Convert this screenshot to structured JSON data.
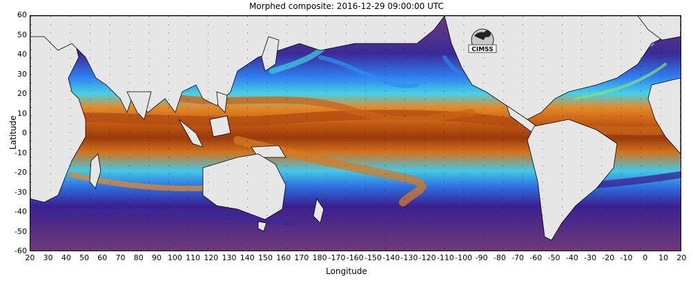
{
  "title": "Morphed composite: 2016-12-29 09:00:00 UTC",
  "xlabel": "Longitude",
  "ylabel": "Latitude",
  "logo_text": "CIMSS",
  "y_ticks": [
    "60",
    "50",
    "40",
    "30",
    "20",
    "10",
    "0",
    "-10",
    "-20",
    "-30",
    "-40",
    "-50",
    "-60"
  ],
  "x_ticks": [
    "20",
    "30",
    "40",
    "50",
    "60",
    "70",
    "80",
    "90",
    "100",
    "110",
    "120",
    "130",
    "140",
    "150",
    "160",
    "170",
    "180",
    "-170",
    "-160",
    "-150",
    "-140",
    "-130",
    "-120",
    "-110",
    "-100",
    "-90",
    "-80",
    "-70",
    "-60",
    "-50",
    "-40",
    "-30",
    "-20",
    "-10",
    "0",
    "10",
    "20"
  ],
  "colors": {
    "land": "#e6e6e6",
    "dry": "#7a3f7a",
    "low": "#3b1f8f",
    "mid": "#2f8ef0",
    "cyan": "#3cd6e8",
    "green": "#7fe07a",
    "orange": "#e07a18",
    "brown": "#8b2a08",
    "dry_brown": "#9a5a4a"
  }
}
